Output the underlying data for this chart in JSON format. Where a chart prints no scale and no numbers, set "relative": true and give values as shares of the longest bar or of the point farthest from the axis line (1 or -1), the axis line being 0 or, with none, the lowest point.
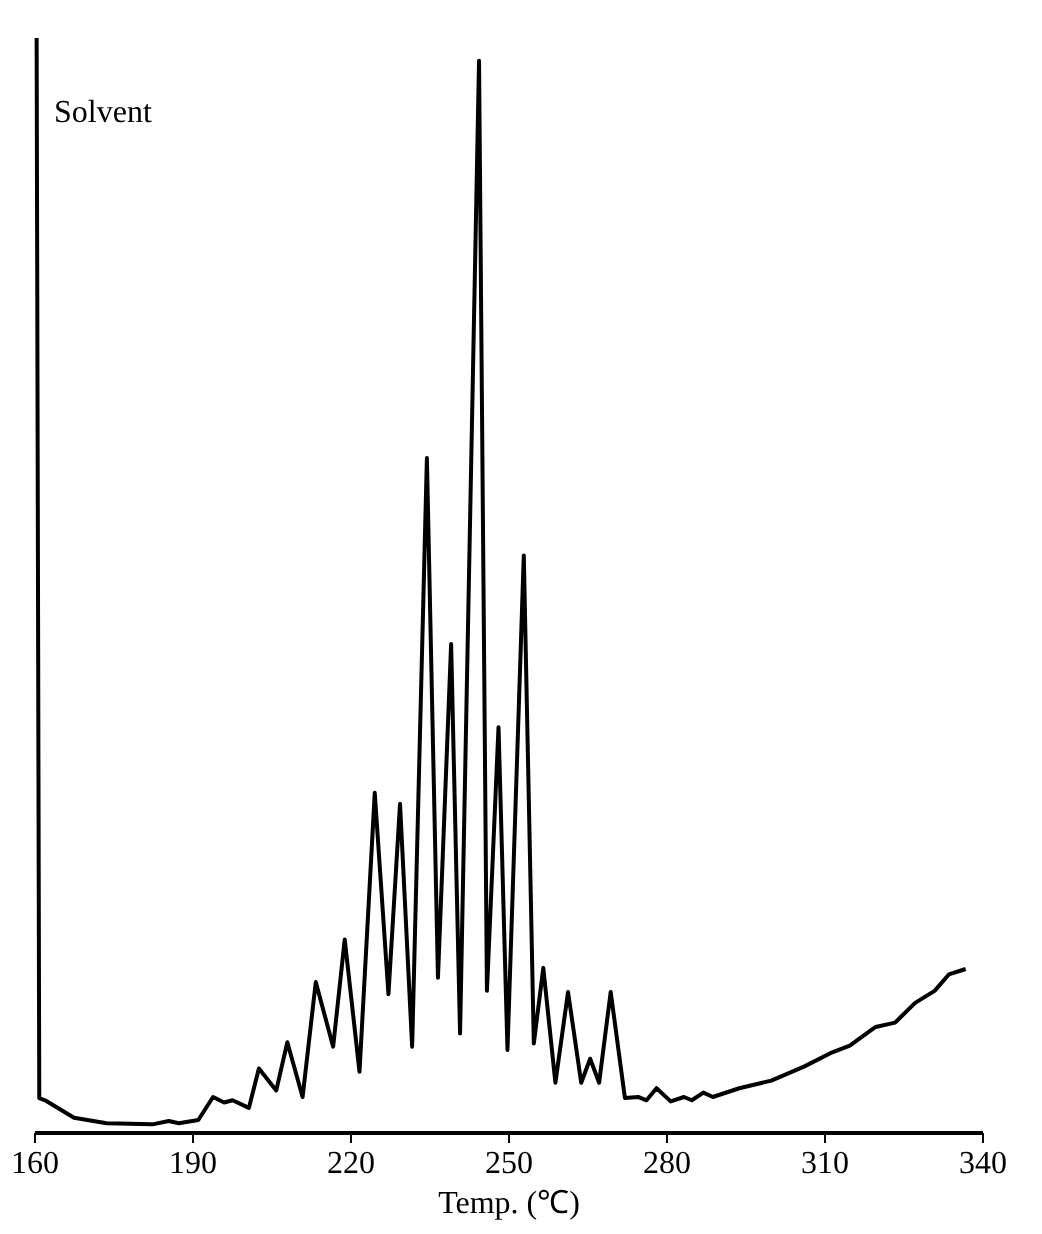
{
  "chart_data": {
    "type": "line",
    "relative": true,
    "xlabel": "Temp. (℃)",
    "xlim": [
      160,
      340
    ],
    "xticks": [
      160,
      190,
      220,
      250,
      280,
      310,
      340
    ],
    "grid": false,
    "tick_labels": "x",
    "marker": "none",
    "line_style": "solid",
    "annotations": [
      "Solvent"
    ],
    "series": [
      {
        "color": "#000000",
        "x": [
          160.5,
          161.0,
          162.1,
          167.6,
          173.8,
          182.5,
          185.6,
          187.5,
          191.2,
          194.0,
          196.1,
          197.7,
          200.8,
          202.7,
          206.0,
          208.1,
          211.0,
          213.5,
          216.8,
          219.0,
          221.8,
          224.7,
          227.3,
          229.5,
          231.8,
          234.6,
          236.7,
          239.2,
          240.9,
          244.5,
          246.0,
          248.2,
          249.9,
          253.0,
          254.9,
          256.7,
          259.0,
          261.4,
          263.9,
          265.6,
          267.3,
          269.5,
          272.2,
          274.7,
          276.3,
          278.2,
          280.9,
          283.4,
          284.9,
          287.1,
          288.9,
          293.9,
          300.0,
          306.3,
          311.2,
          314.9,
          319.8,
          323.5,
          327.3,
          331.0,
          333.7,
          336.9
        ],
        "values": [
          1.0,
          0.031,
          0.029,
          0.013,
          0.008,
          0.007,
          0.01,
          0.008,
          0.011,
          0.032,
          0.027,
          0.029,
          0.022,
          0.058,
          0.038,
          0.082,
          0.032,
          0.137,
          0.078,
          0.176,
          0.055,
          0.31,
          0.126,
          0.3,
          0.078,
          0.616,
          0.141,
          0.446,
          0.09,
          0.979,
          0.129,
          0.37,
          0.075,
          0.527,
          0.081,
          0.15,
          0.045,
          0.128,
          0.045,
          0.067,
          0.045,
          0.128,
          0.031,
          0.032,
          0.029,
          0.04,
          0.028,
          0.032,
          0.029,
          0.036,
          0.032,
          0.04,
          0.047,
          0.06,
          0.072,
          0.079,
          0.096,
          0.1,
          0.118,
          0.129,
          0.144,
          0.149
        ]
      }
    ]
  }
}
